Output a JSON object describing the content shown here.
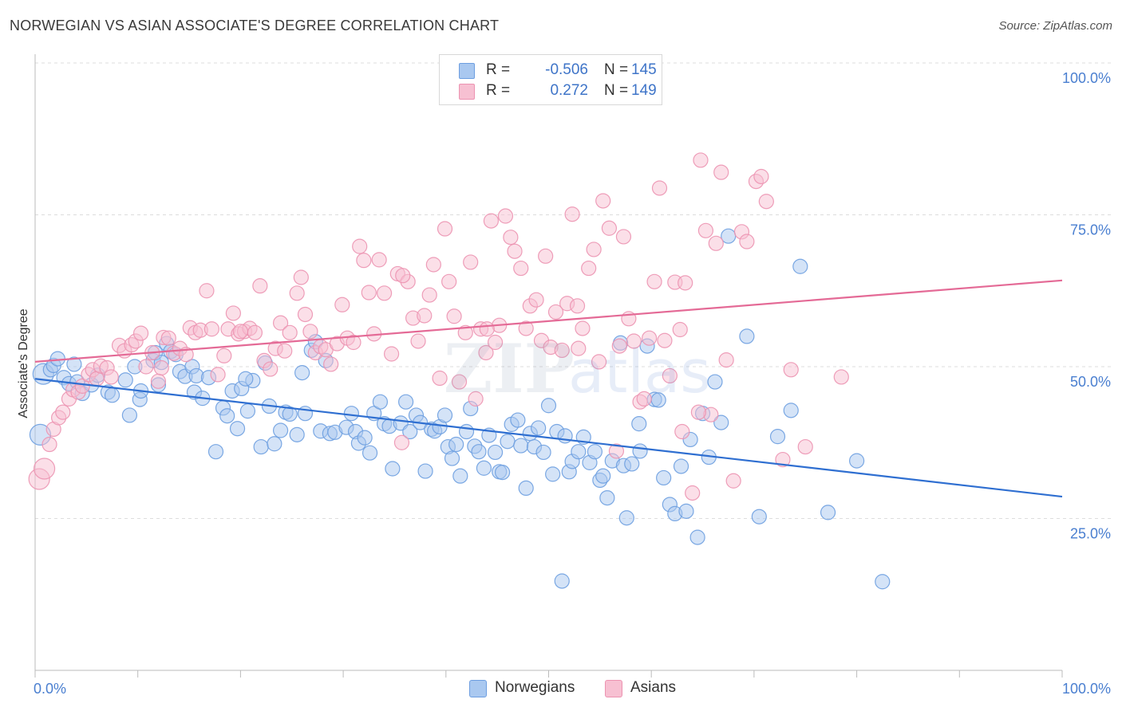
{
  "header": {
    "title": "NORWEGIAN VS ASIAN ASSOCIATE'S DEGREE CORRELATION CHART",
    "source": "Source: ZipAtlas.com"
  },
  "colors": {
    "norwegians_fill": "#a9c8f0",
    "norwegians_stroke": "#6d9ee0",
    "norwegians_line": "#2f6fd1",
    "asians_fill": "#f7c0d2",
    "asians_stroke": "#ec93b1",
    "asians_line": "#e46a96",
    "tick_label": "#4a7fd0",
    "grid": "#dddddd"
  },
  "legend": {
    "rows": [
      {
        "r_label": "R =",
        "r_value": "-0.506",
        "n_label": "N =",
        "n_value": "145"
      },
      {
        "r_label": "R =",
        "r_value": "0.272",
        "n_label": "N =",
        "n_value": "149"
      }
    ],
    "bottom": [
      "Norwegians",
      "Asians"
    ]
  },
  "chart_data": {
    "type": "scatter",
    "title": "NORWEGIAN VS ASIAN ASSOCIATE'S DEGREE CORRELATION CHART",
    "xlabel": "",
    "ylabel": "Associate's Degree",
    "xlim": [
      0,
      100
    ],
    "ylim": [
      0,
      100
    ],
    "x_ticks": [
      "0.0%",
      "100.0%"
    ],
    "y_ticks": [
      {
        "value": 25,
        "label": "25.0%"
      },
      {
        "value": 50,
        "label": "50.0%"
      },
      {
        "value": 75,
        "label": "75.0%"
      },
      {
        "value": 100,
        "label": "100.0%"
      }
    ],
    "grid": "horizontal dashed",
    "legend_position": "top-center",
    "series": [
      {
        "name": "Norwegians",
        "r": -0.506,
        "n": 145,
        "trend": {
          "x": [
            0,
            100
          ],
          "y": [
            48.0,
            28.6
          ]
        },
        "points": [
          [
            0.5,
            38.8
          ],
          [
            0.8,
            48.8
          ],
          [
            1.5,
            49.5
          ],
          [
            1.8,
            50.2
          ],
          [
            2.2,
            51.3
          ],
          [
            2.8,
            48.2
          ],
          [
            3.3,
            47.2
          ],
          [
            3.8,
            50.4
          ],
          [
            4.1,
            47.5
          ],
          [
            4.6,
            45.6
          ],
          [
            5.5,
            47.0
          ],
          [
            6.1,
            48.6
          ],
          [
            7.1,
            45.8
          ],
          [
            7.5,
            45.3
          ],
          [
            8.8,
            47.8
          ],
          [
            9.7,
            50.0
          ],
          [
            10.2,
            44.6
          ],
          [
            10.3,
            46.0
          ],
          [
            11.5,
            51.0
          ],
          [
            11.7,
            52.3
          ],
          [
            12.3,
            50.7
          ],
          [
            12.8,
            53.8
          ],
          [
            13.2,
            52.5
          ],
          [
            13.7,
            52.0
          ],
          [
            14.1,
            49.2
          ],
          [
            14.6,
            48.4
          ],
          [
            15.3,
            50.0
          ],
          [
            15.7,
            48.5
          ],
          [
            15.5,
            45.8
          ],
          [
            16.3,
            44.8
          ],
          [
            16.9,
            48.2
          ],
          [
            17.6,
            36.0
          ],
          [
            18.3,
            43.2
          ],
          [
            18.7,
            41.9
          ],
          [
            19.2,
            46.0
          ],
          [
            19.7,
            39.8
          ],
          [
            20.1,
            46.4
          ],
          [
            20.7,
            42.7
          ],
          [
            21.2,
            47.7
          ],
          [
            22.0,
            36.8
          ],
          [
            22.4,
            50.6
          ],
          [
            22.8,
            43.5
          ],
          [
            23.3,
            37.3
          ],
          [
            23.9,
            39.5
          ],
          [
            24.4,
            42.5
          ],
          [
            24.8,
            42.2
          ],
          [
            25.5,
            38.8
          ],
          [
            26.3,
            42.3
          ],
          [
            26.9,
            52.7
          ],
          [
            27.3,
            54.1
          ],
          [
            27.8,
            39.4
          ],
          [
            28.3,
            51.0
          ],
          [
            28.7,
            39.0
          ],
          [
            29.2,
            39.2
          ],
          [
            30.3,
            40.0
          ],
          [
            30.8,
            42.3
          ],
          [
            31.2,
            39.3
          ],
          [
            31.5,
            37.4
          ],
          [
            32.1,
            38.3
          ],
          [
            32.6,
            35.8
          ],
          [
            33.0,
            42.3
          ],
          [
            33.6,
            44.2
          ],
          [
            34.0,
            40.6
          ],
          [
            34.5,
            40.2
          ],
          [
            34.8,
            33.2
          ],
          [
            35.6,
            40.7
          ],
          [
            36.1,
            44.2
          ],
          [
            36.5,
            39.3
          ],
          [
            37.1,
            42.0
          ],
          [
            37.5,
            40.8
          ],
          [
            38.0,
            32.8
          ],
          [
            38.6,
            39.7
          ],
          [
            38.9,
            39.4
          ],
          [
            39.4,
            40.1
          ],
          [
            39.9,
            42.0
          ],
          [
            40.2,
            36.8
          ],
          [
            40.6,
            34.9
          ],
          [
            41.0,
            37.2
          ],
          [
            41.4,
            32.0
          ],
          [
            42.0,
            39.3
          ],
          [
            42.4,
            43.1
          ],
          [
            42.8,
            36.9
          ],
          [
            43.2,
            36.0
          ],
          [
            43.7,
            33.3
          ],
          [
            44.2,
            38.7
          ],
          [
            44.8,
            35.9
          ],
          [
            45.2,
            32.7
          ],
          [
            45.5,
            32.6
          ],
          [
            46.0,
            37.7
          ],
          [
            46.4,
            40.5
          ],
          [
            47.0,
            41.2
          ],
          [
            47.3,
            37.0
          ],
          [
            47.8,
            30.0
          ],
          [
            48.2,
            39.0
          ],
          [
            48.6,
            36.8
          ],
          [
            49.0,
            39.9
          ],
          [
            49.5,
            35.9
          ],
          [
            50.0,
            43.6
          ],
          [
            50.4,
            32.3
          ],
          [
            50.8,
            39.3
          ],
          [
            51.3,
            14.7
          ],
          [
            51.6,
            38.6
          ],
          [
            52.0,
            32.7
          ],
          [
            52.3,
            34.4
          ],
          [
            52.9,
            36.0
          ],
          [
            53.4,
            38.4
          ],
          [
            54.0,
            34.2
          ],
          [
            54.5,
            36.0
          ],
          [
            55.0,
            31.3
          ],
          [
            55.3,
            32.0
          ],
          [
            55.7,
            28.4
          ],
          [
            56.2,
            34.5
          ],
          [
            57.0,
            53.9
          ],
          [
            57.3,
            33.7
          ],
          [
            57.6,
            25.1
          ],
          [
            58.1,
            34.0
          ],
          [
            58.9,
            36.1
          ],
          [
            59.6,
            53.4
          ],
          [
            60.3,
            44.6
          ],
          [
            60.7,
            44.5
          ],
          [
            61.2,
            31.7
          ],
          [
            61.8,
            27.3
          ],
          [
            62.3,
            25.8
          ],
          [
            62.9,
            33.6
          ],
          [
            63.4,
            26.2
          ],
          [
            63.8,
            38.0
          ],
          [
            64.5,
            21.9
          ],
          [
            65.0,
            42.3
          ],
          [
            65.6,
            35.1
          ],
          [
            66.2,
            47.5
          ],
          [
            66.8,
            40.8
          ],
          [
            67.5,
            71.5
          ],
          [
            69.3,
            55.0
          ],
          [
            70.5,
            25.3
          ],
          [
            72.3,
            38.5
          ],
          [
            73.6,
            42.8
          ],
          [
            74.5,
            66.5
          ],
          [
            77.2,
            26.0
          ],
          [
            80.0,
            34.5
          ],
          [
            82.5,
            14.6
          ],
          [
            20.5,
            48.0
          ],
          [
            26.0,
            49.0
          ],
          [
            12.0,
            47.0
          ],
          [
            9.2,
            42.0
          ],
          [
            58.8,
            40.6
          ]
        ]
      },
      {
        "name": "Asians",
        "r": 0.272,
        "n": 149,
        "trend": {
          "x": [
            0,
            100
          ],
          "y": [
            50.8,
            64.2
          ]
        },
        "points": [
          [
            0.4,
            31.5
          ],
          [
            0.9,
            33.2
          ],
          [
            1.4,
            37.2
          ],
          [
            1.8,
            39.7
          ],
          [
            2.3,
            41.6
          ],
          [
            2.7,
            42.5
          ],
          [
            3.3,
            44.7
          ],
          [
            3.7,
            46.2
          ],
          [
            4.2,
            45.8
          ],
          [
            4.6,
            46.8
          ],
          [
            5.2,
            48.7
          ],
          [
            5.6,
            49.5
          ],
          [
            6.0,
            48.0
          ],
          [
            6.4,
            50.1
          ],
          [
            7.0,
            49.8
          ],
          [
            7.4,
            48.3
          ],
          [
            8.2,
            53.5
          ],
          [
            8.7,
            52.6
          ],
          [
            9.4,
            53.6
          ],
          [
            9.8,
            54.2
          ],
          [
            10.3,
            55.5
          ],
          [
            10.8,
            50.0
          ],
          [
            11.4,
            52.3
          ],
          [
            12.0,
            47.6
          ],
          [
            12.5,
            54.8
          ],
          [
            13.0,
            54.7
          ],
          [
            13.5,
            52.2
          ],
          [
            14.1,
            53.0
          ],
          [
            14.7,
            52.0
          ],
          [
            15.1,
            56.4
          ],
          [
            15.6,
            55.6
          ],
          [
            16.1,
            56.0
          ],
          [
            16.7,
            62.5
          ],
          [
            17.2,
            56.2
          ],
          [
            17.8,
            48.7
          ],
          [
            18.4,
            51.8
          ],
          [
            18.8,
            56.2
          ],
          [
            19.3,
            58.8
          ],
          [
            19.8,
            55.4
          ],
          [
            20.4,
            55.8
          ],
          [
            20.9,
            56.3
          ],
          [
            21.4,
            55.6
          ],
          [
            21.9,
            63.3
          ],
          [
            22.3,
            51.0
          ],
          [
            22.9,
            49.6
          ],
          [
            23.4,
            53.0
          ],
          [
            23.9,
            57.2
          ],
          [
            24.3,
            52.6
          ],
          [
            24.8,
            55.6
          ],
          [
            25.5,
            62.1
          ],
          [
            25.9,
            64.7
          ],
          [
            26.3,
            58.6
          ],
          [
            26.8,
            55.8
          ],
          [
            27.3,
            52.3
          ],
          [
            27.8,
            53.3
          ],
          [
            28.3,
            52.8
          ],
          [
            28.8,
            50.4
          ],
          [
            29.4,
            53.8
          ],
          [
            29.9,
            60.2
          ],
          [
            30.4,
            54.7
          ],
          [
            31.0,
            54.0
          ],
          [
            31.6,
            69.8
          ],
          [
            32.0,
            67.5
          ],
          [
            32.5,
            62.2
          ],
          [
            33.0,
            55.4
          ],
          [
            33.5,
            67.6
          ],
          [
            34.0,
            62.1
          ],
          [
            34.7,
            52.1
          ],
          [
            35.3,
            65.3
          ],
          [
            35.7,
            37.5
          ],
          [
            36.3,
            64.0
          ],
          [
            36.8,
            58.0
          ],
          [
            37.3,
            54.2
          ],
          [
            37.9,
            58.4
          ],
          [
            38.4,
            61.8
          ],
          [
            38.8,
            66.8
          ],
          [
            39.4,
            48.1
          ],
          [
            39.9,
            72.7
          ],
          [
            40.3,
            64.0
          ],
          [
            40.8,
            58.3
          ],
          [
            41.3,
            47.5
          ],
          [
            41.9,
            55.6
          ],
          [
            42.4,
            67.2
          ],
          [
            42.9,
            44.7
          ],
          [
            43.4,
            56.2
          ],
          [
            43.9,
            52.3
          ],
          [
            44.4,
            74.0
          ],
          [
            44.8,
            54.0
          ],
          [
            45.2,
            56.8
          ],
          [
            45.8,
            74.8
          ],
          [
            46.3,
            71.3
          ],
          [
            46.7,
            69.0
          ],
          [
            47.3,
            66.2
          ],
          [
            47.8,
            56.3
          ],
          [
            48.2,
            60.0
          ],
          [
            48.8,
            61.0
          ],
          [
            49.3,
            54.3
          ],
          [
            49.7,
            68.2
          ],
          [
            50.2,
            53.2
          ],
          [
            50.7,
            59.0
          ],
          [
            51.3,
            52.7
          ],
          [
            51.8,
            60.4
          ],
          [
            52.3,
            75.1
          ],
          [
            52.9,
            53.0
          ],
          [
            53.3,
            56.3
          ],
          [
            53.9,
            66.2
          ],
          [
            54.4,
            69.3
          ],
          [
            54.9,
            50.8
          ],
          [
            55.3,
            77.3
          ],
          [
            55.9,
            72.8
          ],
          [
            56.6,
            36.1
          ],
          [
            56.9,
            53.4
          ],
          [
            57.3,
            71.4
          ],
          [
            57.8,
            57.9
          ],
          [
            58.3,
            54.2
          ],
          [
            58.9,
            44.2
          ],
          [
            59.3,
            44.7
          ],
          [
            59.8,
            54.7
          ],
          [
            60.3,
            64.0
          ],
          [
            60.8,
            79.4
          ],
          [
            61.3,
            54.3
          ],
          [
            61.8,
            48.5
          ],
          [
            62.3,
            63.9
          ],
          [
            62.8,
            56.1
          ],
          [
            63.3,
            63.8
          ],
          [
            64.0,
            29.2
          ],
          [
            64.8,
            84.0
          ],
          [
            65.3,
            72.4
          ],
          [
            65.8,
            42.1
          ],
          [
            66.3,
            70.3
          ],
          [
            66.8,
            82.0
          ],
          [
            67.3,
            51.1
          ],
          [
            68.0,
            31.2
          ],
          [
            68.8,
            72.2
          ],
          [
            69.3,
            70.6
          ],
          [
            70.2,
            80.5
          ],
          [
            70.7,
            81.3
          ],
          [
            71.2,
            77.2
          ],
          [
            72.8,
            34.7
          ],
          [
            73.6,
            49.5
          ],
          [
            75.0,
            36.8
          ],
          [
            78.5,
            48.3
          ],
          [
            20.0,
            55.8
          ],
          [
            12.3,
            49.8
          ],
          [
            44.0,
            56.2
          ],
          [
            35.8,
            65.0
          ],
          [
            52.8,
            60.0
          ],
          [
            63.0,
            39.3
          ],
          [
            64.6,
            42.5
          ]
        ]
      }
    ]
  }
}
